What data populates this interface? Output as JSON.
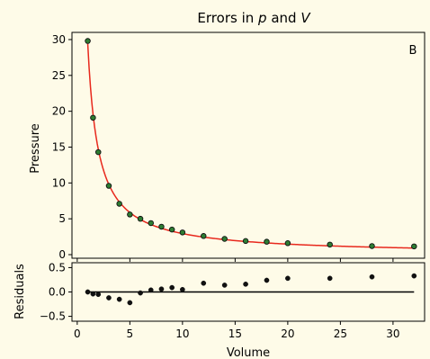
{
  "colors": {
    "background": "#fefbe8",
    "fit_line": "#e8281c",
    "marker_face": "#2e7d32",
    "marker_edge": "#111111",
    "zero_line": "#000000"
  },
  "chart_data": [
    {
      "type": "scatter",
      "panel": "main",
      "title_parts": [
        "Errors in ",
        "p",
        " and ",
        "V"
      ],
      "annotation": "B",
      "xlabel": "",
      "ylabel": "Pressure",
      "xlim": [
        -0.5,
        33
      ],
      "ylim": [
        -0.5,
        31
      ],
      "xticks": [
        0,
        5,
        10,
        15,
        20,
        25,
        30
      ],
      "yticks": [
        0,
        5,
        10,
        15,
        20,
        25,
        30
      ],
      "series": [
        {
          "kind": "points",
          "x": [
            1,
            1.5,
            2,
            3,
            4,
            5,
            6,
            7,
            8,
            9,
            10,
            12,
            14,
            16,
            18,
            20,
            24,
            28,
            32
          ],
          "y": [
            29.8,
            19.1,
            14.3,
            9.6,
            7.1,
            5.6,
            5.0,
            4.4,
            3.9,
            3.5,
            3.1,
            2.6,
            2.2,
            1.9,
            1.8,
            1.6,
            1.4,
            1.2,
            1.15
          ]
        },
        {
          "kind": "fit",
          "equation_constant": 29.4,
          "x_range": [
            1,
            32
          ]
        }
      ]
    },
    {
      "type": "scatter",
      "panel": "residuals",
      "xlabel": "Volume",
      "ylabel": "Residuals",
      "xlim": [
        -0.5,
        33
      ],
      "ylim": [
        -0.6,
        0.6
      ],
      "xticks": [
        0,
        5,
        10,
        15,
        20,
        25,
        30
      ],
      "yticks": [
        -0.5,
        0.0,
        0.5
      ],
      "ytick_labels": [
        "−0.5",
        "0.0",
        "0.5"
      ],
      "series": [
        {
          "kind": "points",
          "x": [
            1,
            1.5,
            2,
            3,
            4,
            5,
            6,
            7,
            8,
            9,
            10,
            12,
            14,
            16,
            18,
            20,
            24,
            28,
            32
          ],
          "y": [
            0.0,
            -0.04,
            -0.05,
            -0.12,
            -0.15,
            -0.22,
            -0.02,
            0.04,
            0.06,
            0.09,
            0.05,
            0.18,
            0.14,
            0.16,
            0.24,
            0.28,
            0.28,
            0.31,
            0.33
          ]
        },
        {
          "kind": "zero_line",
          "y": 0,
          "x_range": [
            1,
            32
          ]
        }
      ]
    }
  ]
}
